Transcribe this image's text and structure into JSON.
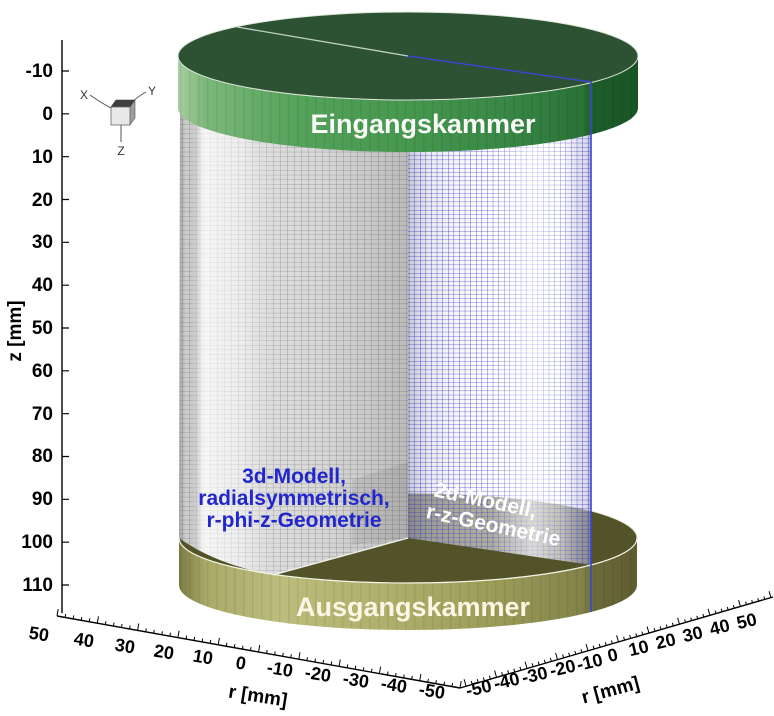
{
  "scene": {
    "chambers": {
      "top": "Eingangskammer",
      "bottom": "Ausgangskammer"
    },
    "model3d": {
      "line1": "3d-Modell,",
      "line2": "radialsymmetrisch,",
      "line3": "r-phi-z-Geometrie"
    },
    "model2d": {
      "line1": "2d-Modell,",
      "line2": "r-z-Geometrie"
    }
  },
  "axes": {
    "z": {
      "label": "z [mm]",
      "ticks": [
        "-10",
        "0",
        "10",
        "20",
        "30",
        "40",
        "50",
        "60",
        "70",
        "80",
        "90",
        "100",
        "110"
      ]
    },
    "r_left": {
      "label": "r [mm]",
      "ticks": [
        "50",
        "40",
        "30",
        "20",
        "10",
        "0",
        "-10",
        "-20",
        "-30",
        "-40",
        "-50"
      ]
    },
    "r_right": {
      "label": "r [mm]",
      "ticks": [
        "-50",
        "-40",
        "-30",
        "-20",
        "-10",
        "0",
        "10",
        "20",
        "30",
        "40",
        "50"
      ]
    }
  },
  "triad": {
    "x": "X",
    "y": "Y",
    "z": "Z"
  },
  "colors": {
    "inlet_top": "#2c5233",
    "inlet_rim_mid": "#4d9d55",
    "outlet_top": "#53532a",
    "outlet_rim_mid": "#a2a260",
    "mesh_gray_bg": "#dcdcdc",
    "mesh_gray_line": "#8a8a8a",
    "mesh_blue_line": "#3d3dcf",
    "plane_edge_blue": "#3946cf",
    "label_blue": "#2127cd",
    "label_white": "#f8faf5",
    "label_cream": "#fbf7e4"
  }
}
